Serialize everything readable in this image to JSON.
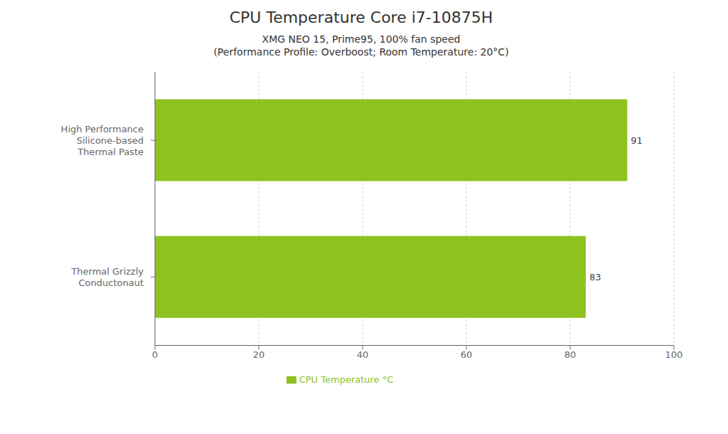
{
  "chart_data": {
    "type": "bar",
    "orientation": "horizontal",
    "title": "CPU Temperature Core i7-10875H",
    "subtitle": "XMG NEO 15, Prime95, 100% fan speed\n(Performance Profile: Overboost; Room Temperature: 20°C)",
    "categories": [
      "High Performance\nSilicone-based\nThermal Paste",
      "Thermal Grizzly\nConductonaut"
    ],
    "series": [
      {
        "name": "CPU Temperature °C",
        "color": "#8dc21f",
        "values": [
          91,
          83
        ]
      }
    ],
    "xlim": [
      0,
      100
    ],
    "xticks": [
      0,
      20,
      40,
      60,
      80,
      100
    ],
    "grid": true,
    "legend": "bottom",
    "data_labels": true
  }
}
